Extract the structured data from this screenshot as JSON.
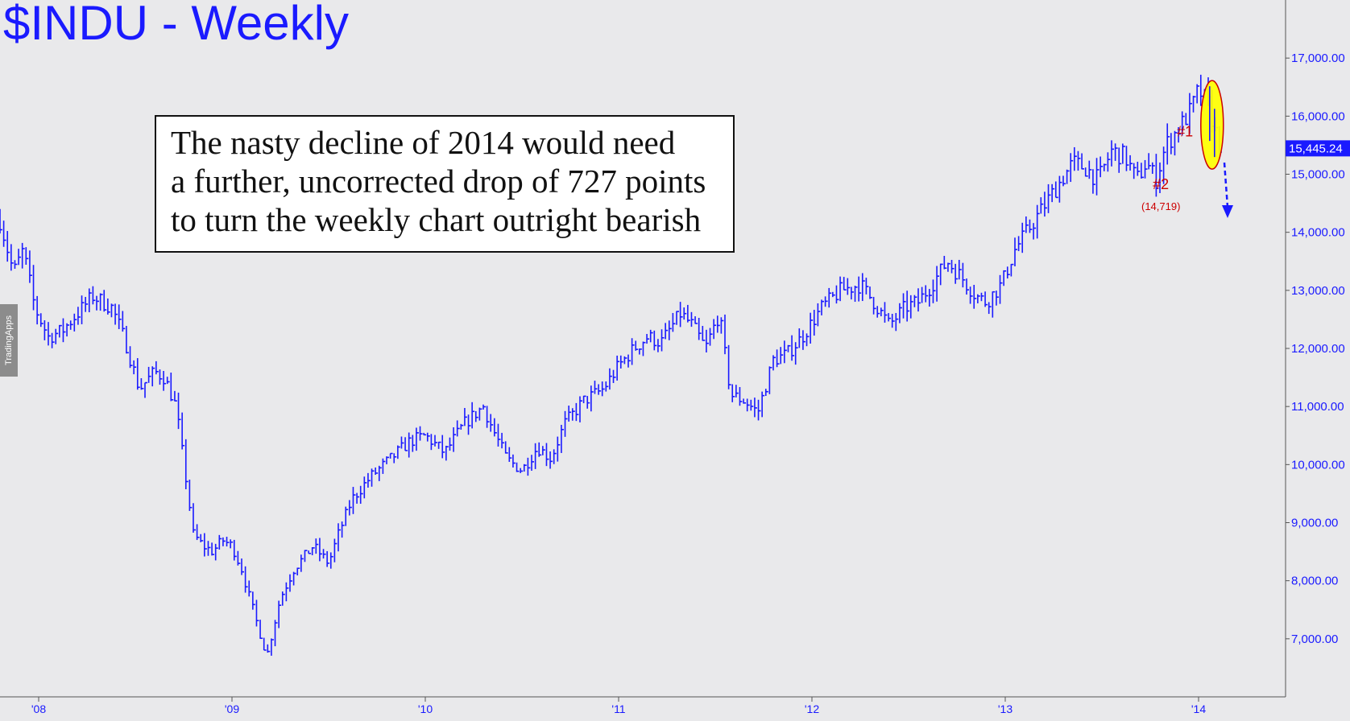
{
  "title": "$INDU - Weekly",
  "side_tab_label": "TradingApps",
  "annotation": {
    "lines": [
      "The nasty decline of 2014 would need",
      "a further, uncorrected drop of 727 points",
      "to turn the weekly chart outright bearish"
    ]
  },
  "colors": {
    "background": "#e9e9eb",
    "bars": "#1a1aff",
    "labels": "#1a1aff",
    "marker_red": "#cc0000",
    "highlight_ellipse": "#ffff00"
  },
  "chart_data": {
    "type": "ohlc",
    "title": "$INDU - Weekly",
    "x_tick_labels": [
      "'08",
      "'09",
      "'10",
      "'11",
      "'12",
      "'13",
      "'14"
    ],
    "x_tick_years": [
      2008,
      2009,
      2010,
      2011,
      2012,
      2013,
      2014
    ],
    "x_range": [
      2007.8,
      2014.45
    ],
    "y_tick_labels": [
      "17,000.00",
      "16,000.00",
      "15,000.00",
      "14,000.00",
      "13,000.00",
      "12,000.00",
      "11,000.00",
      "10,000.00",
      "9,000.00",
      "8,000.00",
      "7,000.00"
    ],
    "y_tick_values": [
      17000,
      16000,
      15000,
      14000,
      13000,
      12000,
      11000,
      10000,
      9000,
      8000,
      7000
    ],
    "y_range": [
      6000,
      18000
    ],
    "last_price": 15445.24,
    "last_price_label": "15,445.24",
    "anchors": [
      [
        2007.8,
        14200
      ],
      [
        2007.87,
        13300
      ],
      [
        2007.92,
        13700
      ],
      [
        2007.98,
        12700
      ],
      [
        2008.05,
        12200
      ],
      [
        2008.12,
        12300
      ],
      [
        2008.2,
        12600
      ],
      [
        2008.28,
        12900
      ],
      [
        2008.38,
        12700
      ],
      [
        2008.45,
        12100
      ],
      [
        2008.52,
        11300
      ],
      [
        2008.6,
        11600
      ],
      [
        2008.65,
        11500
      ],
      [
        2008.71,
        11000
      ],
      [
        2008.76,
        9800
      ],
      [
        2008.8,
        8800
      ],
      [
        2008.85,
        8600
      ],
      [
        2008.9,
        8500
      ],
      [
        2008.95,
        8700
      ],
      [
        2009.0,
        8600
      ],
      [
        2009.05,
        8200
      ],
      [
        2009.1,
        7600
      ],
      [
        2009.18,
        6700
      ],
      [
        2009.25,
        7700
      ],
      [
        2009.32,
        8200
      ],
      [
        2009.42,
        8600
      ],
      [
        2009.5,
        8300
      ],
      [
        2009.55,
        8800
      ],
      [
        2009.62,
        9400
      ],
      [
        2009.72,
        9800
      ],
      [
        2009.82,
        10100
      ],
      [
        2009.92,
        10400
      ],
      [
        2010.0,
        10500
      ],
      [
        2010.1,
        10200
      ],
      [
        2010.2,
        10700
      ],
      [
        2010.3,
        11000
      ],
      [
        2010.35,
        10600
      ],
      [
        2010.42,
        10100
      ],
      [
        2010.5,
        9900
      ],
      [
        2010.58,
        10300
      ],
      [
        2010.65,
        10100
      ],
      [
        2010.72,
        10700
      ],
      [
        2010.82,
        11100
      ],
      [
        2010.92,
        11300
      ],
      [
        2011.0,
        11700
      ],
      [
        2011.08,
        12000
      ],
      [
        2011.15,
        12200
      ],
      [
        2011.22,
        12100
      ],
      [
        2011.32,
        12600
      ],
      [
        2011.38,
        12400
      ],
      [
        2011.45,
        12000
      ],
      [
        2011.52,
        12600
      ],
      [
        2011.58,
        11200
      ],
      [
        2011.65,
        11100
      ],
      [
        2011.72,
        10900
      ],
      [
        2011.8,
        11800
      ],
      [
        2011.87,
        11900
      ],
      [
        2011.95,
        12200
      ],
      [
        2012.05,
        12700
      ],
      [
        2012.15,
        13000
      ],
      [
        2012.25,
        13100
      ],
      [
        2012.32,
        12800
      ],
      [
        2012.4,
        12400
      ],
      [
        2012.48,
        12700
      ],
      [
        2012.55,
        12800
      ],
      [
        2012.62,
        13100
      ],
      [
        2012.7,
        13500
      ],
      [
        2012.78,
        13200
      ],
      [
        2012.85,
        12900
      ],
      [
        2012.9,
        12800
      ],
      [
        2012.98,
        13100
      ],
      [
        2013.05,
        13700
      ],
      [
        2013.15,
        14200
      ],
      [
        2013.25,
        14700
      ],
      [
        2013.35,
        15200
      ],
      [
        2013.42,
        15100
      ],
      [
        2013.48,
        14900
      ],
      [
        2013.55,
        15400
      ],
      [
        2013.62,
        15300
      ],
      [
        2013.68,
        14900
      ],
      [
        2013.73,
        15200
      ],
      [
        2013.78,
        14900
      ],
      [
        2013.83,
        15500
      ],
      [
        2013.9,
        15800
      ],
      [
        2013.96,
        16100
      ],
      [
        2014.0,
        16450
      ],
      [
        2014.05,
        16200
      ],
      [
        2014.09,
        15700
      ],
      [
        2014.12,
        15400
      ]
    ],
    "annotations": {
      "marker_1": {
        "label": "#1",
        "x": 2013.93,
        "y": 15650
      },
      "marker_2": {
        "label": "#2",
        "value_label": "(14,719)",
        "x": 2013.78,
        "y": 14719
      },
      "ellipse": {
        "x": 2014.07,
        "y": 15850
      },
      "projection_arrow": {
        "x": 2014.15,
        "y_from": 15200,
        "y_to": 14300
      }
    }
  }
}
